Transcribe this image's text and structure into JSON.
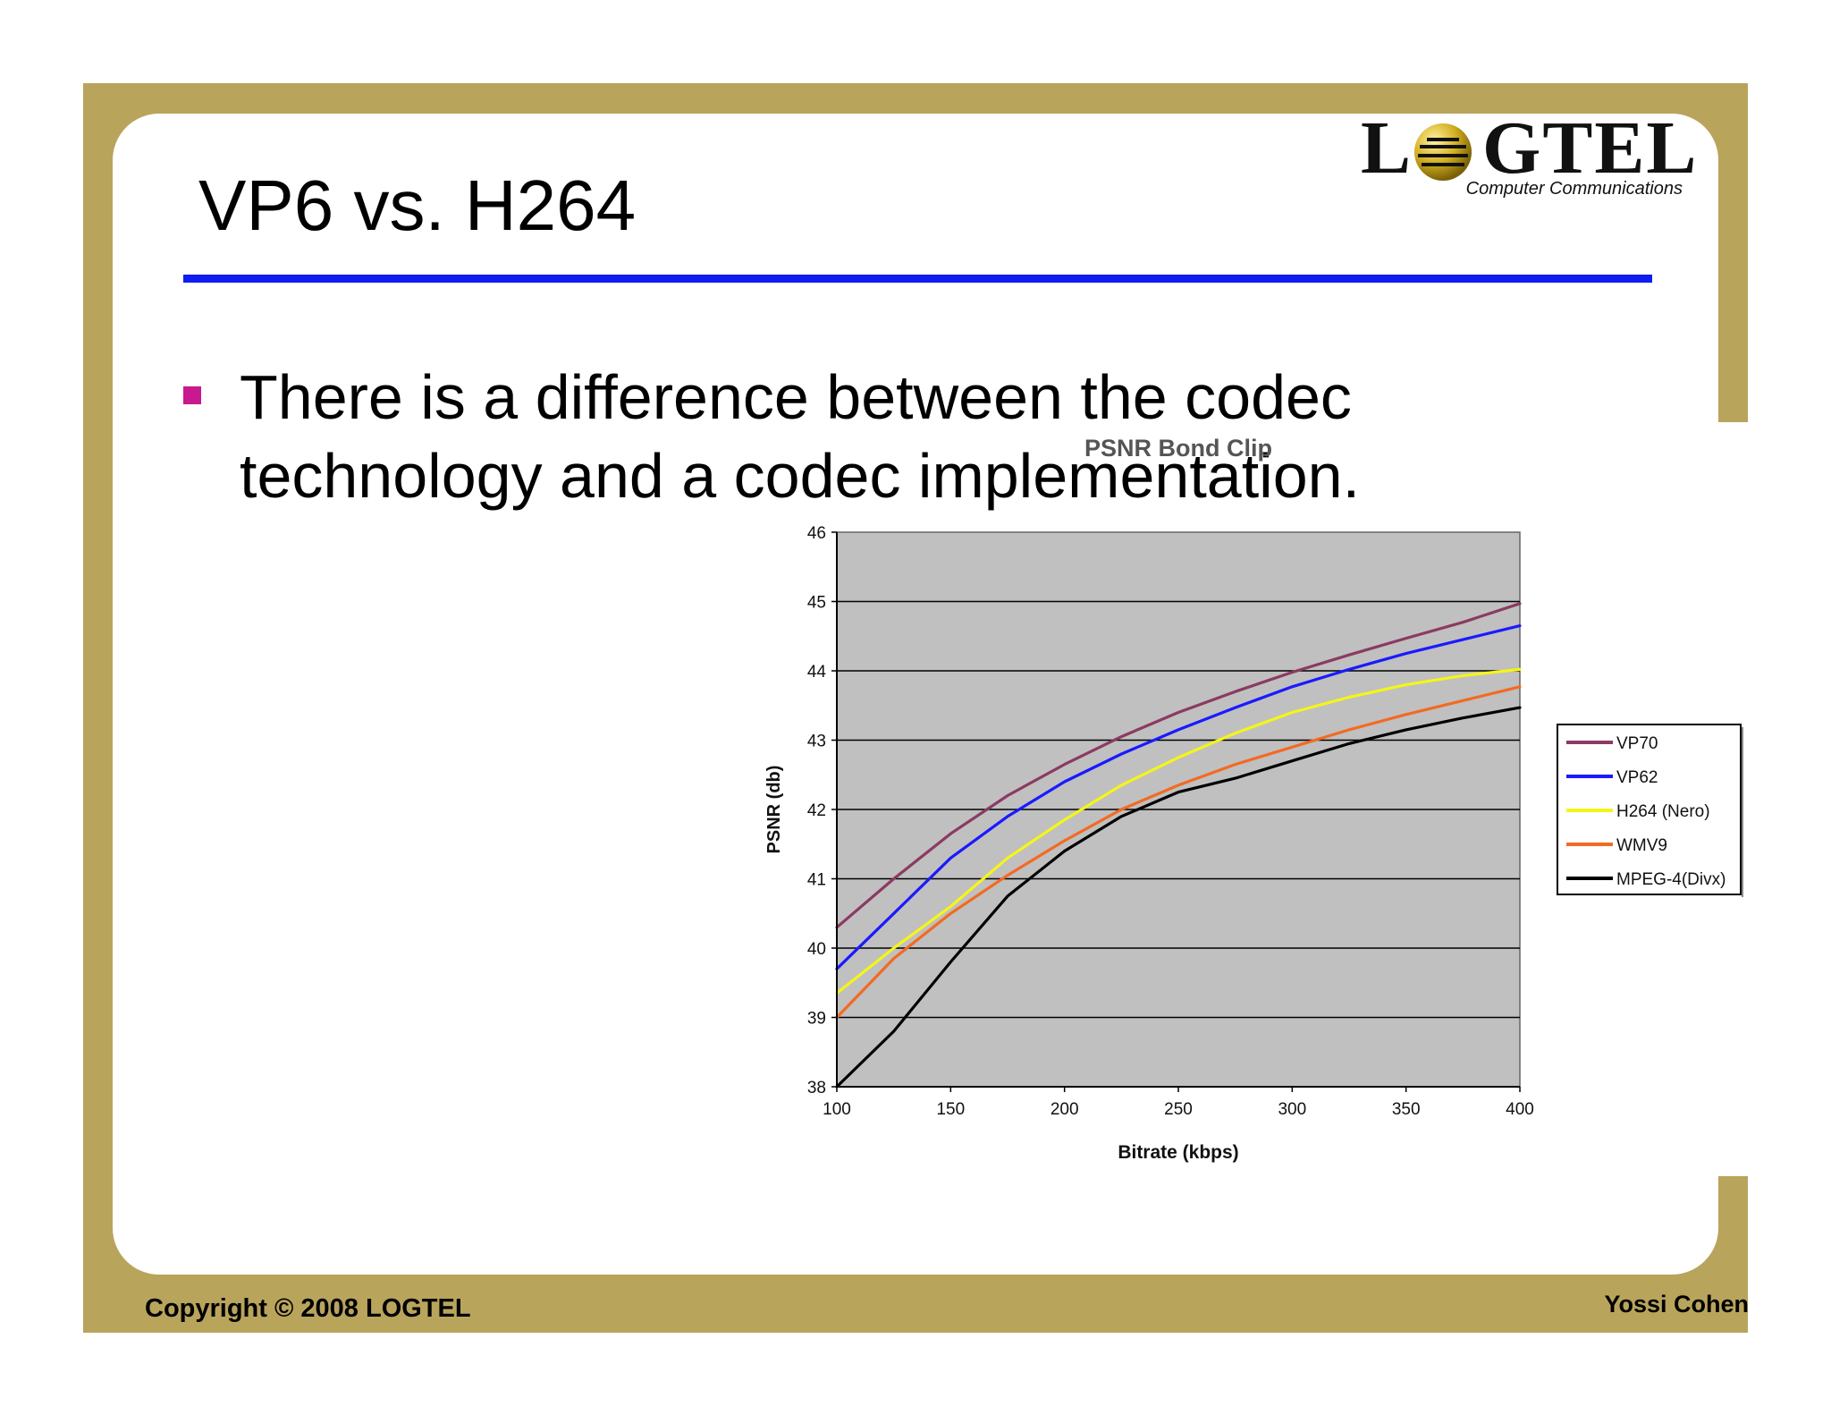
{
  "slide": {
    "title": "VP6 vs. H264",
    "bullets": [
      "There is a difference between the codec technology and a codec implementation."
    ],
    "footer_left": "Copyright © 2008 LOGTEL",
    "footer_right": "Yossi Cohen"
  },
  "logo": {
    "word_left": "L",
    "word_right": "GTEL",
    "tagline": "Computer Communications"
  },
  "colors": {
    "frame": "#b9a45c",
    "rule": "#0f1df0",
    "bullet": "#c8198f",
    "plot_background": "#c0c0c0"
  },
  "chart_data": {
    "type": "line",
    "title": "PSNR Bond Clip",
    "xlabel": "Bitrate (kbps)",
    "ylabel": "PSNR (db)",
    "xlim": [
      100,
      400
    ],
    "ylim": [
      38,
      46
    ],
    "x_ticks": [
      100,
      150,
      200,
      250,
      300,
      350,
      400
    ],
    "y_ticks": [
      38,
      39,
      40,
      41,
      42,
      43,
      44,
      45,
      46
    ],
    "grid": "horizontal",
    "legend_position": "right",
    "series": [
      {
        "name": "VP70",
        "color": "#8b3a62",
        "points": [
          [
            100,
            40.3
          ],
          [
            125,
            41.0
          ],
          [
            150,
            41.65
          ],
          [
            175,
            42.2
          ],
          [
            200,
            42.65
          ],
          [
            225,
            43.05
          ],
          [
            250,
            43.4
          ],
          [
            275,
            43.7
          ],
          [
            300,
            43.98
          ],
          [
            325,
            44.23
          ],
          [
            350,
            44.47
          ],
          [
            375,
            44.7
          ],
          [
            400,
            44.97
          ]
        ]
      },
      {
        "name": "VP62",
        "color": "#1a1aff",
        "points": [
          [
            100,
            39.7
          ],
          [
            125,
            40.5
          ],
          [
            150,
            41.3
          ],
          [
            175,
            41.9
          ],
          [
            200,
            42.4
          ],
          [
            225,
            42.8
          ],
          [
            250,
            43.15
          ],
          [
            275,
            43.47
          ],
          [
            300,
            43.77
          ],
          [
            325,
            44.02
          ],
          [
            350,
            44.25
          ],
          [
            375,
            44.45
          ],
          [
            400,
            44.65
          ]
        ]
      },
      {
        "name": "H264 (Nero)",
        "color": "#f5f51a",
        "points": [
          [
            100,
            39.35
          ],
          [
            125,
            40.0
          ],
          [
            150,
            40.6
          ],
          [
            175,
            41.3
          ],
          [
            200,
            41.85
          ],
          [
            225,
            42.35
          ],
          [
            250,
            42.75
          ],
          [
            275,
            43.1
          ],
          [
            300,
            43.4
          ],
          [
            325,
            43.62
          ],
          [
            350,
            43.8
          ],
          [
            375,
            43.93
          ],
          [
            400,
            44.02
          ]
        ]
      },
      {
        "name": "WMV9",
        "color": "#f36a23",
        "points": [
          [
            100,
            39.0
          ],
          [
            125,
            39.85
          ],
          [
            150,
            40.5
          ],
          [
            175,
            41.05
          ],
          [
            200,
            41.55
          ],
          [
            225,
            42.0
          ],
          [
            250,
            42.35
          ],
          [
            275,
            42.65
          ],
          [
            300,
            42.9
          ],
          [
            325,
            43.15
          ],
          [
            350,
            43.37
          ],
          [
            375,
            43.57
          ],
          [
            400,
            43.77
          ]
        ]
      },
      {
        "name": "MPEG-4(Divx)",
        "color": "#000000",
        "points": [
          [
            100,
            38.0
          ],
          [
            125,
            38.8
          ],
          [
            150,
            39.8
          ],
          [
            175,
            40.75
          ],
          [
            200,
            41.4
          ],
          [
            225,
            41.9
          ],
          [
            250,
            42.25
          ],
          [
            275,
            42.45
          ],
          [
            300,
            42.7
          ],
          [
            325,
            42.95
          ],
          [
            350,
            43.15
          ],
          [
            375,
            43.32
          ],
          [
            400,
            43.47
          ]
        ]
      }
    ]
  }
}
